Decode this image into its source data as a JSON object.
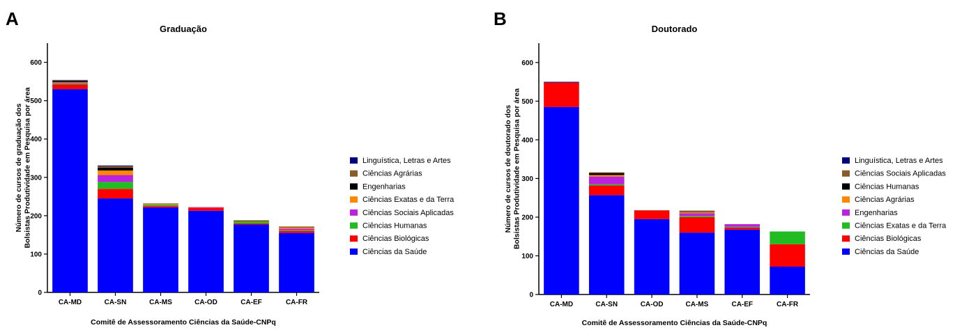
{
  "chart_data": [
    {
      "panel": "A",
      "type": "bar",
      "stacked": true,
      "title": "Graduação",
      "xlabel": "Comitê de Assessoramento Ciências da Saúde-CNPq",
      "ylabel": "Número de cursos de graduação dos Bolsistas Produtividade em Pesquisa por área",
      "ylim": [
        0,
        650
      ],
      "yticks": [
        0,
        100,
        200,
        300,
        400,
        500,
        600
      ],
      "categories": [
        "CA-MD",
        "CA-SN",
        "CA-MS",
        "CA-OD",
        "CA-EF",
        "CA-FR"
      ],
      "legend_position": "right",
      "series": [
        {
          "name": "Ciências da Saúde",
          "color": "#0000ff",
          "values": [
            530,
            245,
            222,
            213,
            177,
            155
          ]
        },
        {
          "name": "Ciências Biológicas",
          "color": "#ff0000",
          "values": [
            12,
            25,
            3,
            7,
            3,
            5
          ]
        },
        {
          "name": "Ciências Humanas",
          "color": "#22bb22",
          "values": [
            2,
            18,
            3,
            0,
            5,
            2
          ]
        },
        {
          "name": "Ciências Sociais Aplicadas",
          "color": "#bb22dd",
          "values": [
            2,
            18,
            0,
            2,
            0,
            4
          ]
        },
        {
          "name": "Ciências Exatas e da Terra",
          "color": "#ff8800",
          "values": [
            2,
            12,
            2,
            1,
            1,
            4
          ]
        },
        {
          "name": "Engenharias",
          "color": "#000000",
          "values": [
            3,
            7,
            0,
            0,
            1,
            1
          ]
        },
        {
          "name": "Ciências Agrárias",
          "color": "#8b5a2b",
          "values": [
            2,
            4,
            2,
            0,
            1,
            1
          ]
        },
        {
          "name": "Linguística, Letras e Artes",
          "color": "#000080",
          "values": [
            1,
            2,
            0,
            0,
            0,
            0
          ]
        }
      ]
    },
    {
      "panel": "B",
      "type": "bar",
      "stacked": true,
      "title": "Doutorado",
      "xlabel": "Comitê de Assessoramento Ciências da Saúde-CNPq",
      "ylabel": "Número de cursos de doutorado dos Bolsistas Produtividade em Pesquisa por área",
      "ylim": [
        0,
        650
      ],
      "yticks": [
        0,
        100,
        200,
        300,
        400,
        500,
        600
      ],
      "categories": [
        "CA-MD",
        "CA-SN",
        "CA-OD",
        "CA-MS",
        "CA-EF",
        "CA-FR"
      ],
      "legend_position": "right",
      "series": [
        {
          "name": "Ciências da Saúde",
          "color": "#0000ff",
          "values": [
            485,
            257,
            195,
            160,
            168,
            72
          ]
        },
        {
          "name": "Ciências Biológicas",
          "color": "#ff0000",
          "values": [
            63,
            25,
            22,
            40,
            5,
            58
          ]
        },
        {
          "name": "Ciências Exatas e da Terra",
          "color": "#22bb22",
          "values": [
            0,
            3,
            0,
            3,
            2,
            33
          ]
        },
        {
          "name": "Engenharias",
          "color": "#bb22dd",
          "values": [
            0,
            20,
            0,
            7,
            7,
            0
          ]
        },
        {
          "name": "Ciências Agrárias",
          "color": "#ff8800",
          "values": [
            0,
            4,
            0,
            2,
            0,
            0
          ]
        },
        {
          "name": "Ciências Humanas",
          "color": "#000000",
          "values": [
            0,
            5,
            0,
            0,
            0,
            0
          ]
        },
        {
          "name": "Ciências Sociais Aplicadas",
          "color": "#8b5a2b",
          "values": [
            0,
            2,
            1,
            5,
            0,
            0
          ]
        },
        {
          "name": "Linguística, Letras e Artes",
          "color": "#000080",
          "values": [
            2,
            0,
            0,
            0,
            0,
            0
          ]
        }
      ]
    }
  ]
}
